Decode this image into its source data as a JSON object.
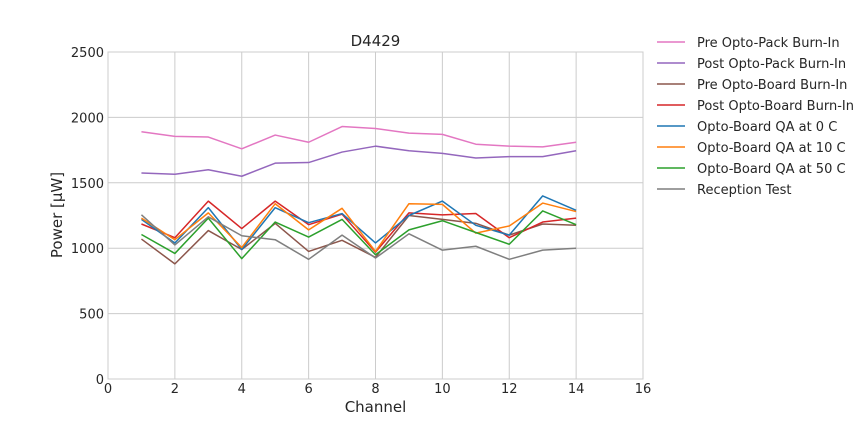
{
  "chart_data": {
    "type": "line",
    "title": "D4429",
    "xlabel": "Channel",
    "ylabel": "Power [μW]",
    "xlim": [
      0,
      16
    ],
    "ylim": [
      0,
      2500
    ],
    "xticks": [
      0,
      2,
      4,
      6,
      8,
      10,
      12,
      14,
      16
    ],
    "yticks": [
      0,
      500,
      1000,
      1500,
      2000,
      2500
    ],
    "grid": true,
    "legend_position": "outside-right",
    "x": [
      1,
      2,
      3,
      4,
      5,
      6,
      7,
      8,
      9,
      10,
      11,
      12,
      13,
      14
    ],
    "series": [
      {
        "name": "Pre Opto-Pack Burn-In",
        "color": "#e377c2",
        "values": [
          1890,
          1855,
          1850,
          1760,
          1865,
          1810,
          1930,
          1915,
          1880,
          1870,
          1795,
          1780,
          1775,
          1810
        ]
      },
      {
        "name": "Post Opto-Pack Burn-In",
        "color": "#9467bd",
        "values": [
          1575,
          1565,
          1600,
          1550,
          1650,
          1655,
          1735,
          1780,
          1745,
          1725,
          1690,
          1700,
          1700,
          1745
        ]
      },
      {
        "name": "Pre Opto-Board Burn-In",
        "color": "#8c564b",
        "values": [
          1070,
          880,
          1135,
          990,
          1190,
          975,
          1060,
          930,
          1250,
          1220,
          1190,
          1100,
          1185,
          1175
        ]
      },
      {
        "name": "Post Opto-Board Burn-In",
        "color": "#d62728",
        "values": [
          1185,
          1080,
          1360,
          1150,
          1360,
          1180,
          1260,
          970,
          1270,
          1255,
          1265,
          1080,
          1200,
          1230
        ]
      },
      {
        "name": "Opto-Board QA at 0 C",
        "color": "#1f77b4",
        "values": [
          1220,
          1040,
          1310,
          990,
          1310,
          1195,
          1265,
          1040,
          1250,
          1360,
          1175,
          1100,
          1400,
          1290
        ]
      },
      {
        "name": "Opto-Board QA at 10 C",
        "color": "#ff7f0e",
        "values": [
          1230,
          1065,
          1270,
          1005,
          1340,
          1140,
          1305,
          975,
          1340,
          1335,
          1115,
          1170,
          1345,
          1280
        ]
      },
      {
        "name": "Opto-Board QA at 50 C",
        "color": "#2ca02c",
        "values": [
          1105,
          960,
          1230,
          920,
          1200,
          1085,
          1220,
          950,
          1140,
          1210,
          1120,
          1030,
          1285,
          1180
        ]
      },
      {
        "name": "Reception Test",
        "color": "#7f7f7f",
        "values": [
          1255,
          1025,
          1240,
          1095,
          1065,
          915,
          1100,
          925,
          1110,
          985,
          1015,
          915,
          985,
          1000
        ]
      }
    ]
  }
}
